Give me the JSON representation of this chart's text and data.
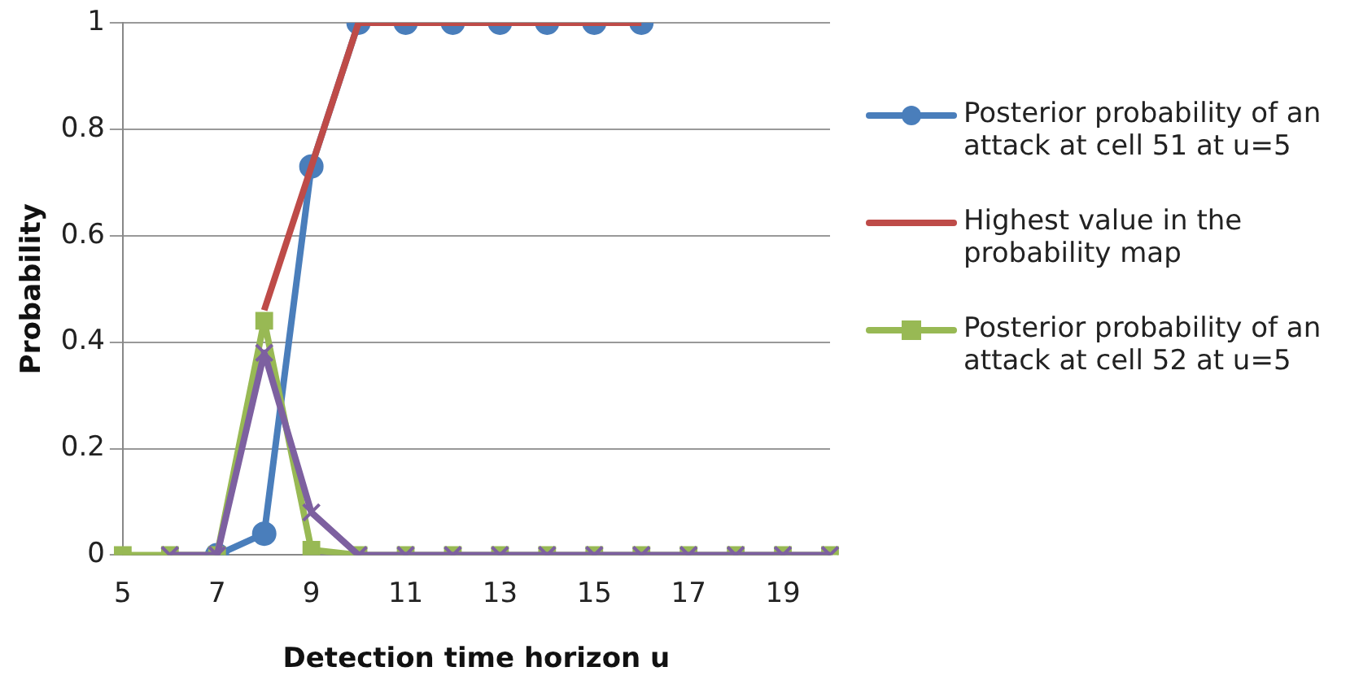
{
  "chart_data": {
    "type": "line",
    "xlabel": "Detection time horizon u",
    "ylabel": "Probability",
    "categories": [
      "5",
      null,
      "7",
      null,
      "9",
      null,
      "11",
      null,
      "13",
      null,
      "15",
      null,
      "17",
      null,
      "19",
      null
    ],
    "series": [
      {
        "name": "Posterior probability of an attack at cell 51 at u=5",
        "color": "#4a7ebb",
        "marker": "circle",
        "values": [
          null,
          null,
          0,
          0.04,
          0.73,
          1,
          1,
          1,
          1,
          1,
          1,
          1,
          null,
          null,
          null,
          null
        ]
      },
      {
        "name": "Highest value in the probability map",
        "color": "#be4b48",
        "marker": "none",
        "values": [
          null,
          null,
          null,
          0.46,
          0.73,
          1,
          1,
          1,
          1,
          1,
          1,
          1,
          null,
          null,
          null,
          null
        ]
      },
      {
        "name": "Posterior probability of an attack at cell 52 at u=5",
        "color": "#98b954",
        "marker": "square",
        "values": [
          0,
          0,
          0,
          0.44,
          0.01,
          0,
          0,
          0,
          0,
          0,
          0,
          0,
          0,
          0,
          0,
          0
        ]
      },
      {
        "color": "#7d60a0",
        "marker": "cross",
        "values": [
          null,
          0,
          0,
          0.38,
          0.08,
          0,
          0,
          0,
          0,
          0,
          0,
          0,
          0,
          0,
          0,
          0
        ]
      }
    ],
    "ylim": [
      0,
      1
    ],
    "yticks": [
      0,
      0.2,
      0.4,
      0.6,
      0.8,
      1
    ],
    "grid": "y",
    "legend": "right"
  }
}
